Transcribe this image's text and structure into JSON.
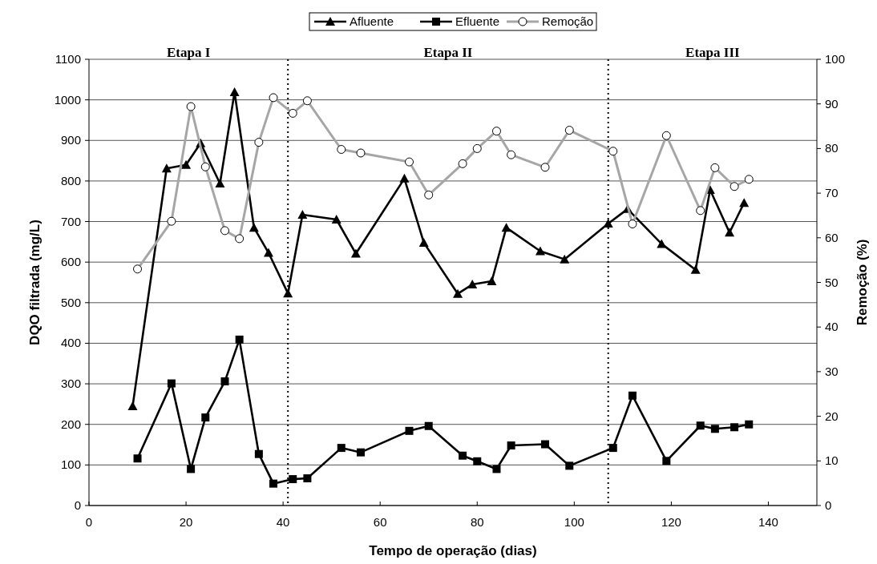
{
  "chart_data": {
    "type": "line",
    "xlabel": "Tempo de operação (dias)",
    "ylabel": "DQO filtrada (mg/L)",
    "y2label": "Remoção (%)",
    "xlim": [
      0,
      150
    ],
    "xticks": [
      0,
      20,
      40,
      60,
      80,
      100,
      120,
      140
    ],
    "ylim": [
      0,
      1100
    ],
    "yticks": [
      0,
      100,
      200,
      300,
      400,
      500,
      600,
      700,
      800,
      900,
      1000,
      1100
    ],
    "y2lim": [
      0,
      100
    ],
    "y2ticks": [
      0,
      10,
      20,
      30,
      40,
      50,
      60,
      70,
      80,
      90,
      100
    ],
    "grid": "y",
    "legend": "top",
    "line_style": "solid",
    "ref_lines": [
      {
        "axis": "x",
        "value": 41,
        "line_style": "dotted",
        "color": "#000000"
      },
      {
        "axis": "x",
        "value": 107,
        "line_style": "dotted",
        "color": "#000000"
      }
    ],
    "annotations": [
      "Etapa I",
      "Etapa II",
      "Etapa III"
    ],
    "series": [
      {
        "name": "Afluente",
        "color": "#000000",
        "marker": "triangle",
        "x": [
          9,
          16,
          20,
          23,
          27,
          30,
          34,
          37,
          41,
          44,
          51,
          55,
          65,
          69,
          76,
          79,
          83,
          86,
          93,
          98,
          107,
          111,
          118,
          125,
          128,
          132,
          135
        ],
        "values": [
          245,
          831,
          840,
          893,
          794,
          1019,
          685,
          623,
          523,
          717,
          705,
          621,
          806,
          648,
          522,
          545,
          553,
          685,
          627,
          607,
          695,
          731,
          645,
          581,
          778,
          673,
          746
        ]
      },
      {
        "name": "Efluente",
        "color": "#000000",
        "marker": "square",
        "x": [
          10,
          17,
          21,
          24,
          28,
          31,
          35,
          38,
          42,
          45,
          52,
          56,
          66,
          70,
          77,
          80,
          84,
          87,
          94,
          99,
          108,
          112,
          119,
          126,
          129,
          133,
          136
        ],
        "values": [
          116,
          301,
          90,
          217,
          306,
          409,
          127,
          54,
          65,
          67,
          142,
          131,
          184,
          196,
          123,
          109,
          90,
          148,
          151,
          98,
          142,
          271,
          110,
          197,
          189,
          193,
          200
        ]
      },
      {
        "name": "Remoção",
        "color": "#a6a6a6",
        "marker": "circle",
        "axis": "y2",
        "x": [
          10,
          17,
          21,
          24,
          28,
          31,
          35,
          38,
          42,
          45,
          52,
          56,
          66,
          70,
          77,
          80,
          84,
          87,
          94,
          99,
          108,
          112,
          119,
          126,
          129,
          133,
          136
        ],
        "values": [
          53,
          63.7,
          89.4,
          75.9,
          61.6,
          59.8,
          81.4,
          91.4,
          87.9,
          90.7,
          79.8,
          79,
          77,
          69.6,
          76.6,
          80,
          83.9,
          78.6,
          75.8,
          84.1,
          79.4,
          63.1,
          82.9,
          66.1,
          75.7,
          71.5,
          73.1
        ]
      }
    ]
  }
}
